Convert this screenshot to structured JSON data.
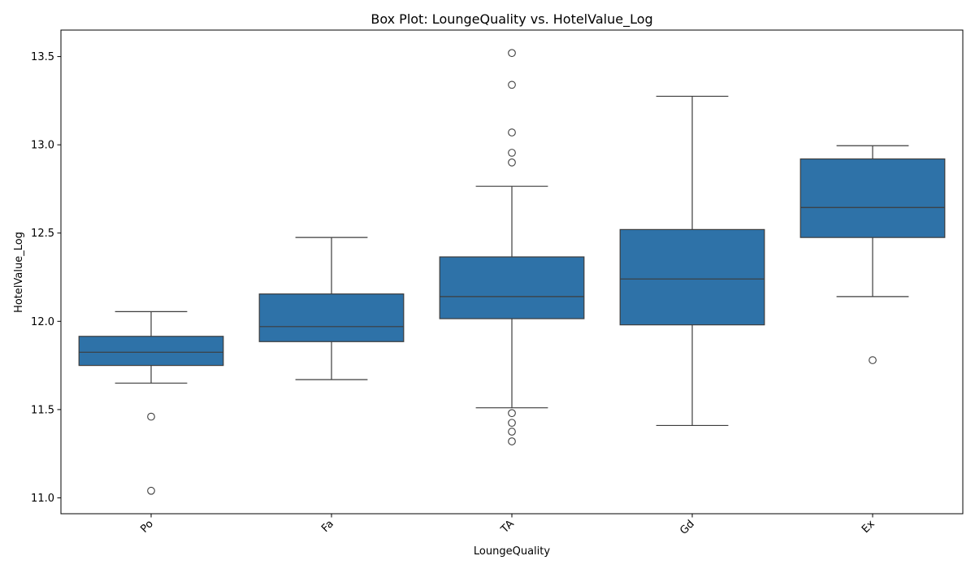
{
  "chart_data": {
    "type": "box",
    "title": "Box Plot: LoungeQuality vs. HotelValue_Log",
    "xlabel": "LoungeQuality",
    "ylabel": "HotelValue_Log",
    "ylim": [
      10.91,
      13.65
    ],
    "yticks": [
      11.0,
      11.5,
      12.0,
      12.5,
      13.0,
      13.5
    ],
    "ytick_labels": [
      "11.0",
      "11.5",
      "12.0",
      "12.5",
      "13.0",
      "13.5"
    ],
    "grid": false,
    "box_color": "#2e72a8",
    "line_color": "#3d3d3d",
    "categories": [
      "Po",
      "Fa",
      "TA",
      "Gd",
      "Ex"
    ],
    "boxes": [
      {
        "category": "Po",
        "whislo": 11.65,
        "q1": 11.75,
        "med": 11.825,
        "q3": 11.915,
        "whishi": 12.055,
        "fliers": [
          11.46,
          11.04
        ]
      },
      {
        "category": "Fa",
        "whislo": 11.67,
        "q1": 11.885,
        "med": 11.97,
        "q3": 12.155,
        "whishi": 12.475,
        "fliers": []
      },
      {
        "category": "TA",
        "whislo": 11.51,
        "q1": 12.015,
        "med": 12.14,
        "q3": 12.365,
        "whishi": 12.765,
        "fliers": [
          13.52,
          13.34,
          13.07,
          12.955,
          12.9,
          11.48,
          11.425,
          11.375,
          11.32
        ]
      },
      {
        "category": "Gd",
        "whislo": 11.41,
        "q1": 11.98,
        "med": 12.24,
        "q3": 12.52,
        "whishi": 13.275,
        "fliers": []
      },
      {
        "category": "Ex",
        "whislo": 12.14,
        "q1": 12.475,
        "med": 12.645,
        "q3": 12.92,
        "whishi": 12.995,
        "fliers": [
          11.78
        ]
      }
    ]
  }
}
